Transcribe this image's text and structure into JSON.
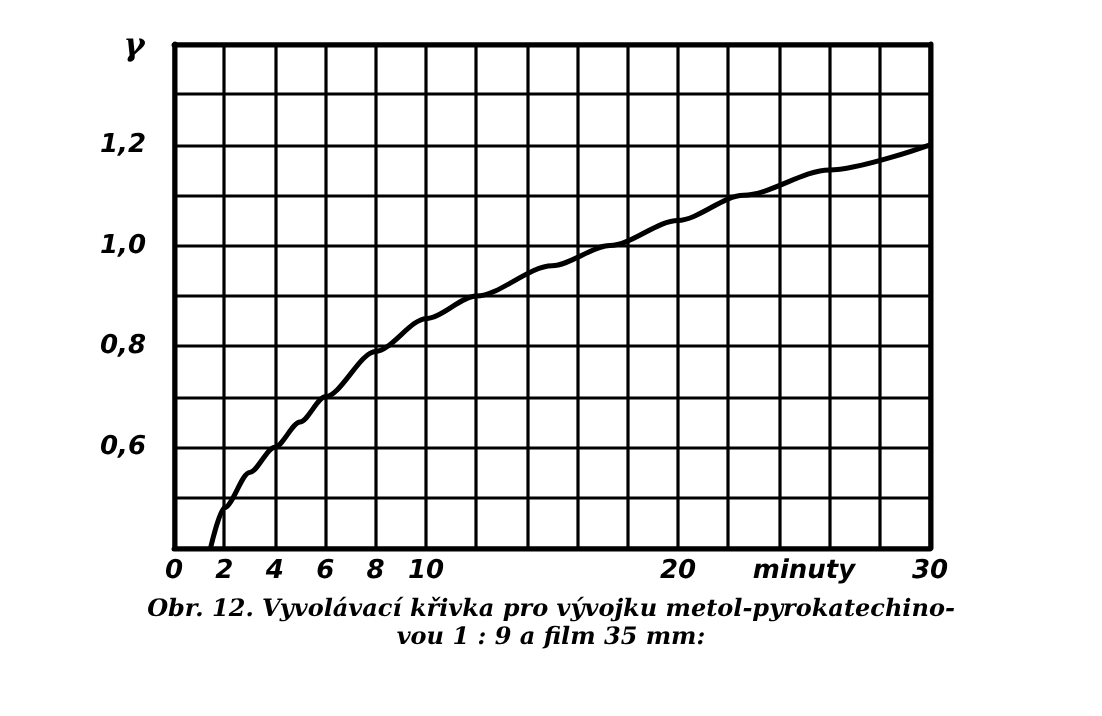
{
  "chart_data": {
    "type": "line",
    "xlabel": "minuty",
    "ylabel": "γ",
    "annotations": [
      "Obr. 12. Vyvolávací křivka pro vývojku metol-pyrokatechino-\nvou 1 : 9 a film 35 mm:"
    ],
    "x": [
      1.45,
      2,
      3,
      4,
      5,
      6,
      8,
      10,
      12,
      15,
      17.3,
      20,
      22.6,
      26,
      30
    ],
    "series": [
      {
        "color": "#000000",
        "values": [
          0.4,
          0.48,
          0.55,
          0.6,
          0.65,
          0.7,
          0.79,
          0.855,
          0.9,
          0.96,
          1.0,
          1.05,
          1.1,
          1.15,
          1.2
        ]
      }
    ],
    "xlim": [
      0,
      30
    ],
    "xticks": [
      0,
      2,
      4,
      6,
      8,
      10,
      {
        "value": 12,
        "label": null
      },
      {
        "value": 14,
        "label": null
      },
      {
        "value": 16,
        "label": null
      },
      {
        "value": 18,
        "label": null
      },
      20,
      {
        "value": 22,
        "label": null
      },
      {
        "value": 24,
        "label": null
      },
      {
        "value": 26,
        "label": null
      },
      {
        "value": 28,
        "label": null
      },
      30
    ],
    "ylim": [
      0.4,
      1.4
    ],
    "yticks": [
      {
        "value": 0.4,
        "label": null
      },
      {
        "value": 0.5,
        "label": null
      },
      {
        "value": 0.6,
        "label": "0,6"
      },
      {
        "value": 0.7,
        "label": null
      },
      {
        "value": 0.8,
        "label": "0,8"
      },
      {
        "value": 0.9,
        "label": null
      },
      {
        "value": 1.0,
        "label": "1,0"
      },
      {
        "value": 1.1,
        "label": null
      },
      {
        "value": 1.2,
        "label": "1,2"
      },
      {
        "value": 1.3,
        "label": null
      },
      {
        "value": 1.4,
        "label": null
      }
    ],
    "grid": true,
    "marker": "none",
    "line_style": "solid"
  }
}
